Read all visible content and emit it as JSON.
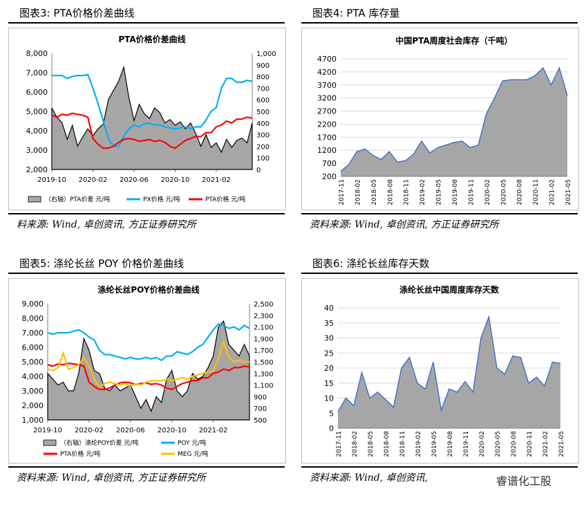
{
  "panels": {
    "fig3": {
      "heading": "图表3:  PTA价格价差曲线",
      "source": "料来源: Wind, 卓创资讯, 方正证券研究所"
    },
    "fig4": {
      "heading": "图表4:  PTA 库存量",
      "source": "资料来源: Wind, 卓创资讯, 方正证券研究所"
    },
    "fig5": {
      "heading": "图表5:  涤纶长丝 POY 价格价差曲线",
      "source": "资料来源: Wind, 卓创资讯, 方正证券研究所"
    },
    "fig6": {
      "heading": "图表6:  涤纶长丝库存天数",
      "source": "资料来源: Wind, 卓创资讯,"
    }
  },
  "watermark": "睿谱化工股",
  "chart_data": [
    {
      "id": "fig3",
      "type": "line",
      "title": "PTA价格价差曲线",
      "x_ticks": [
        "2019-10",
        "2020-02",
        "2020-06",
        "2020-10",
        "2021-02"
      ],
      "x_tick_pos": [
        0,
        4,
        8,
        12,
        16
      ],
      "x_range": [
        0,
        19.5
      ],
      "ylim": [
        2000,
        8000
      ],
      "y_ticks": [
        "2,000",
        "3,000",
        "4,000",
        "5,000",
        "6,000",
        "7,000",
        "8,000"
      ],
      "y2lim": [
        0,
        1000
      ],
      "y2_ticks": [
        "0",
        "100",
        "200",
        "300",
        "400",
        "500",
        "600",
        "700",
        "800",
        "900",
        "1,000"
      ],
      "series": [
        {
          "name": "（右轴）PTA价差  元/吨",
          "axis": "right",
          "kind": "area",
          "color": "#a6a6a6",
          "x": [
            0,
            0.5,
            1,
            1.5,
            2,
            2.5,
            3,
            3.5,
            4,
            4.5,
            5,
            5.5,
            6,
            6.5,
            7,
            7.5,
            8,
            8.5,
            9,
            9.5,
            10,
            10.5,
            11,
            11.5,
            12,
            12.5,
            13,
            13.5,
            14,
            14.5,
            15,
            15.5,
            16,
            16.5,
            17,
            17.5,
            18,
            18.5,
            19,
            19.5
          ],
          "values": [
            530,
            450,
            400,
            260,
            380,
            200,
            280,
            350,
            290,
            350,
            390,
            600,
            680,
            760,
            880,
            620,
            420,
            560,
            480,
            440,
            530,
            490,
            400,
            430,
            380,
            410,
            350,
            400,
            310,
            200,
            300,
            190,
            230,
            150,
            260,
            190,
            250,
            270,
            230,
            400
          ]
        },
        {
          "name": "PX价格  元/吨",
          "axis": "left",
          "kind": "line",
          "color": "#00b0f0",
          "x": [
            0,
            0.5,
            1,
            1.5,
            2,
            2.5,
            3,
            3.5,
            4,
            4.5,
            5,
            5.5,
            6,
            6.5,
            7,
            7.5,
            8,
            8.5,
            9,
            9.5,
            10,
            10.5,
            11,
            11.5,
            12,
            12.5,
            13,
            13.5,
            14,
            14.5,
            15,
            15.5,
            16,
            16.5,
            17,
            17.5,
            18,
            18.5,
            19,
            19.5
          ],
          "values": [
            6850,
            6850,
            6850,
            6700,
            6800,
            6850,
            6850,
            6900,
            6200,
            5400,
            4500,
            3600,
            3200,
            3200,
            3700,
            4100,
            4300,
            4200,
            4350,
            4400,
            4300,
            4300,
            4200,
            4150,
            4100,
            4150,
            4200,
            4100,
            4200,
            4200,
            4550,
            5000,
            5200,
            6200,
            6700,
            6700,
            6500,
            6500,
            6600,
            6550
          ]
        },
        {
          "name": "PTA价格  元/吨",
          "axis": "left",
          "kind": "line",
          "color": "#ff0000",
          "x": [
            0,
            0.5,
            1,
            1.5,
            2,
            2.5,
            3,
            3.5,
            4,
            4.5,
            5,
            5.5,
            6,
            6.5,
            7,
            7.5,
            8,
            8.5,
            9,
            9.5,
            10,
            10.5,
            11,
            11.5,
            12,
            12.5,
            13,
            13.5,
            14,
            14.5,
            15,
            15.5,
            16,
            16.5,
            17,
            17.5,
            18,
            18.5,
            19,
            19.5
          ],
          "values": [
            4800,
            4700,
            4850,
            4800,
            4900,
            4850,
            4800,
            4700,
            3600,
            3300,
            3100,
            3100,
            3200,
            3400,
            3550,
            3600,
            3550,
            3450,
            3500,
            3550,
            3450,
            3500,
            3400,
            3200,
            3100,
            3300,
            3500,
            3600,
            3700,
            3700,
            3900,
            3900,
            4200,
            4300,
            4500,
            4400,
            4600,
            4600,
            4700,
            4650
          ]
        }
      ]
    },
    {
      "id": "fig4",
      "type": "area",
      "title": "中国PTA周度社会库存（千吨）",
      "x_ticks": [
        "2017-11",
        "2018-02",
        "2018-05",
        "2018-08",
        "2018-11",
        "2019-02",
        "2019-05",
        "2019-08",
        "2019-11",
        "2020-02",
        "2020-05",
        "2020-08",
        "2020-11",
        "2021-02",
        "2021-05"
      ],
      "ylim": [
        200,
        4700
      ],
      "y_ticks": [
        "200",
        "700",
        "1200",
        "1700",
        "2200",
        "2700",
        "3200",
        "3700",
        "4200",
        "4700"
      ],
      "series": [
        {
          "color": "#a6a6a6",
          "stroke": "#4472c4",
          "x": [
            0,
            0.5,
            1,
            1.5,
            2,
            2.5,
            3,
            3.5,
            4,
            4.5,
            5,
            5.5,
            6,
            6.5,
            7,
            7.5,
            8,
            8.5,
            9,
            9.5,
            10,
            10.5,
            11,
            11.5,
            12,
            12.5,
            13,
            13.5,
            14
          ],
          "values": [
            400,
            650,
            1150,
            1250,
            1000,
            850,
            1150,
            750,
            800,
            1050,
            1550,
            1100,
            1300,
            1400,
            1500,
            1550,
            1300,
            1400,
            2600,
            3200,
            3850,
            3900,
            3900,
            3900,
            4050,
            4350,
            3700,
            4350,
            3300
          ]
        }
      ]
    },
    {
      "id": "fig5",
      "type": "line",
      "title": "涤纶长丝POY价格价差曲线",
      "x_ticks": [
        "2019-10",
        "2020-02",
        "2020-06",
        "2020-10",
        "2021-02"
      ],
      "x_tick_pos": [
        0,
        4,
        8,
        12,
        16
      ],
      "x_range": [
        0,
        19.5
      ],
      "ylim": [
        1000,
        9000
      ],
      "y_ticks": [
        "1,000",
        "2,000",
        "3,000",
        "4,000",
        "5,000",
        "6,000",
        "7,000",
        "8,000",
        "9,000"
      ],
      "y2lim": [
        500,
        2500
      ],
      "y2_ticks": [
        "500",
        "700",
        "900",
        "1,100",
        "1,300",
        "1,500",
        "1,700",
        "1,900",
        "2,100",
        "2,300",
        "2,500"
      ],
      "series": [
        {
          "name": "（右轴）涤纶POY价差  元/吨",
          "axis": "right",
          "kind": "area",
          "color": "#a6a6a6",
          "x": [
            0,
            0.5,
            1,
            1.5,
            2,
            2.5,
            3,
            3.5,
            4,
            4.5,
            5,
            5.5,
            6,
            6.5,
            7,
            7.5,
            8,
            8.5,
            9,
            9.5,
            10,
            10.5,
            11,
            11.5,
            12,
            12.5,
            13,
            13.5,
            14,
            14.5,
            15,
            15.5,
            16,
            16.5,
            17,
            17.5,
            18,
            18.5,
            19,
            19.5
          ],
          "values": [
            1300,
            1200,
            1100,
            1150,
            1000,
            1000,
            1300,
            1900,
            1700,
            1350,
            1300,
            1050,
            1000,
            1100,
            1000,
            1050,
            1100,
            900,
            700,
            850,
            650,
            900,
            800,
            1200,
            1350,
            1000,
            900,
            1000,
            1300,
            1200,
            1250,
            1400,
            1600,
            2100,
            2200,
            1800,
            1700,
            1600,
            1800,
            1600
          ]
        },
        {
          "name": "POY  元/吨",
          "axis": "left",
          "kind": "line",
          "color": "#00b0f0",
          "x": [
            0,
            0.5,
            1,
            1.5,
            2,
            2.5,
            3,
            3.5,
            4,
            4.5,
            5,
            5.5,
            6,
            6.5,
            7,
            7.5,
            8,
            8.5,
            9,
            9.5,
            10,
            10.5,
            11,
            11.5,
            12,
            12.5,
            13,
            13.5,
            14,
            14.5,
            15,
            15.5,
            16,
            16.5,
            17,
            17.5,
            18,
            18.5,
            19,
            19.5
          ],
          "values": [
            7000,
            6900,
            7000,
            7000,
            7000,
            7100,
            7200,
            7000,
            6700,
            6500,
            5800,
            5500,
            5500,
            5400,
            5300,
            5200,
            5300,
            5200,
            5200,
            5300,
            5200,
            5300,
            5100,
            5400,
            5400,
            5700,
            5600,
            5500,
            5700,
            6000,
            6200,
            6700,
            7200,
            7600,
            7500,
            7300,
            7400,
            7200,
            7500,
            7300
          ]
        },
        {
          "name": "PTA价格  元/吨",
          "axis": "left",
          "kind": "line",
          "color": "#ff0000",
          "x": [
            0,
            0.5,
            1,
            1.5,
            2,
            2.5,
            3,
            3.5,
            4,
            4.5,
            5,
            5.5,
            6,
            6.5,
            7,
            7.5,
            8,
            8.5,
            9,
            9.5,
            10,
            10.5,
            11,
            11.5,
            12,
            12.5,
            13,
            13.5,
            14,
            14.5,
            15,
            15.5,
            16,
            16.5,
            17,
            17.5,
            18,
            18.5,
            19,
            19.5
          ],
          "values": [
            4800,
            4700,
            4850,
            4800,
            4900,
            4850,
            4800,
            4700,
            3600,
            3300,
            3100,
            3100,
            3200,
            3400,
            3550,
            3600,
            3550,
            3450,
            3500,
            3550,
            3450,
            3500,
            3400,
            3200,
            3100,
            3300,
            3500,
            3600,
            3700,
            3700,
            3900,
            3900,
            4200,
            4300,
            4500,
            4400,
            4600,
            4600,
            4700,
            4650
          ]
        },
        {
          "name": "MEG  元/吨",
          "axis": "left",
          "kind": "line",
          "color": "#ffc000",
          "x": [
            0,
            0.5,
            1,
            1.5,
            2,
            2.5,
            3,
            3.5,
            4,
            4.5,
            5,
            5.5,
            6,
            6.5,
            7,
            7.5,
            8,
            8.5,
            9,
            9.5,
            10,
            10.5,
            11,
            11.5,
            12,
            12.5,
            13,
            13.5,
            14,
            14.5,
            15,
            15.5,
            16,
            16.5,
            17,
            17.5,
            18,
            18.5,
            19,
            19.5
          ],
          "values": [
            4500,
            4400,
            4600,
            5600,
            4500,
            4600,
            4800,
            5300,
            4700,
            3800,
            3300,
            3500,
            3600,
            3500,
            3400,
            3500,
            3300,
            3500,
            3400,
            3600,
            3700,
            3700,
            3700,
            3800,
            3700,
            3800,
            3900,
            3800,
            4000,
            4100,
            4200,
            4300,
            4400,
            5200,
            6400,
            5300,
            5000,
            5100,
            5000,
            5000
          ]
        }
      ]
    },
    {
      "id": "fig6",
      "type": "area",
      "title": "涤纶长丝中国周度库存天数",
      "x_ticks": [
        "2017-11",
        "2018-02",
        "2018-05",
        "2018-08",
        "2018-11",
        "2019-02",
        "2019-05",
        "2019-08",
        "2019-11",
        "2020-02",
        "2020-05",
        "2020-08",
        "2020-11",
        "2021-02",
        "2021-05"
      ],
      "ylim": [
        0,
        40
      ],
      "y_ticks": [
        "0",
        "5",
        "10",
        "15",
        "20",
        "25",
        "30",
        "35",
        "40"
      ],
      "series": [
        {
          "color": "#a6a6a6",
          "stroke": "#4472c4",
          "x": [
            0,
            0.5,
            1,
            1.5,
            2,
            2.5,
            3,
            3.5,
            4,
            4.5,
            5,
            5.5,
            6,
            6.5,
            7,
            7.5,
            8,
            8.5,
            9,
            9.5,
            10,
            10.5,
            11,
            11.5,
            12,
            12.5,
            13,
            13.5,
            14
          ],
          "values": [
            5.5,
            10,
            7.5,
            18.5,
            10,
            12,
            9.5,
            7,
            20,
            23.5,
            15,
            13,
            22,
            6,
            13,
            12,
            15.5,
            12,
            30,
            37,
            20,
            18,
            24,
            23.5,
            15,
            17,
            14,
            22,
            21.5
          ]
        }
      ]
    }
  ]
}
